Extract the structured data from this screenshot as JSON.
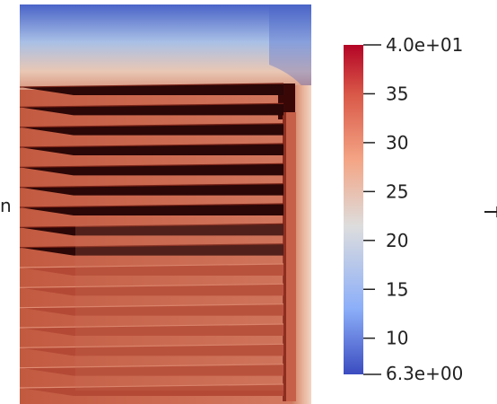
{
  "scene": {
    "description_colors": {
      "hot": "#2a0505",
      "warm": "#c9553f",
      "cool": "#e8cfc3",
      "cold": "#3b4cc0"
    },
    "fin_count": 16
  },
  "colorbar": {
    "title": "T",
    "min_label": "6.3e+00",
    "max_label": "4.0e+01",
    "tick_labels": [
      "35",
      "30",
      "25",
      "20",
      "15",
      "10"
    ],
    "min_value": 6.3,
    "max_value": 40,
    "colors": [
      "#3b4cc0",
      "#8caff9",
      "#dddddd",
      "#f4a585",
      "#d95848",
      "#b40426"
    ]
  },
  "cut_label": "n"
}
